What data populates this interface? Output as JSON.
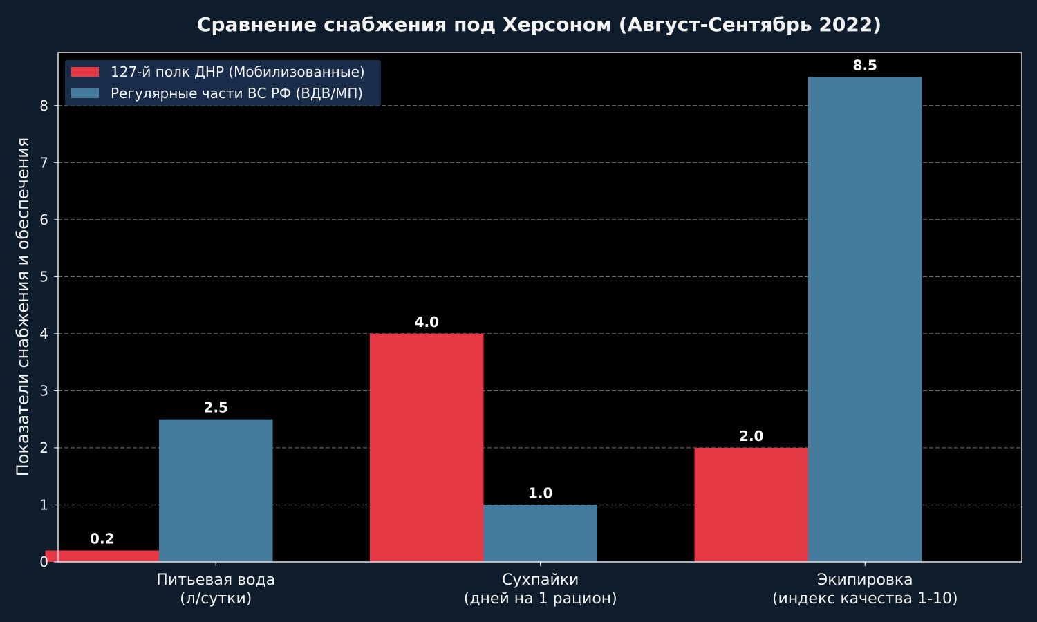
{
  "chart_data": {
    "type": "bar",
    "title": "Сравнение снабжения под Херсоном (Август-Сентябрь 2022)",
    "xlabel": "",
    "ylabel": "Показатели снабжения и обеспечения",
    "categories": [
      [
        "Питьевая вода",
        "(л/сутки)"
      ],
      [
        "Сухпайки",
        "(дней на 1 рацион)"
      ],
      [
        "Экипировка",
        "(индекс качества 1-10)"
      ]
    ],
    "series": [
      {
        "name": "127-й полк ДНР (Мобилизованные)",
        "color": "#e63946",
        "values": [
          0.2,
          4.0,
          2.0
        ]
      },
      {
        "name": "Регулярные части ВС РФ (ВДВ/МП)",
        "color": "#457b9d",
        "values": [
          2.5,
          1.0,
          8.5
        ]
      }
    ],
    "ylim": [
      0,
      8.93
    ],
    "yticks": [
      0,
      1,
      2,
      3,
      4,
      5,
      6,
      7,
      8
    ],
    "grid": true,
    "legend_position": "top-left",
    "value_labels": [
      "0.2",
      "4.0",
      "2.0",
      "2.5",
      "1.0",
      "8.5"
    ]
  }
}
